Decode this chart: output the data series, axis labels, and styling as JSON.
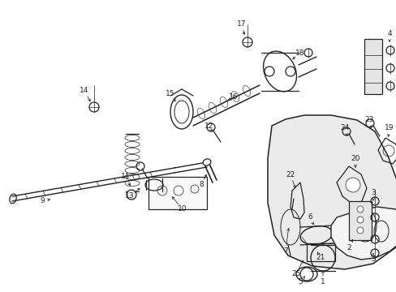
{
  "bg_color": "#ffffff",
  "line_color": "#222222",
  "fig_width": 4.89,
  "fig_height": 3.6,
  "dpi": 100,
  "lw_main": 0.9,
  "lw_thin": 0.5,
  "label_fs": 6.5
}
